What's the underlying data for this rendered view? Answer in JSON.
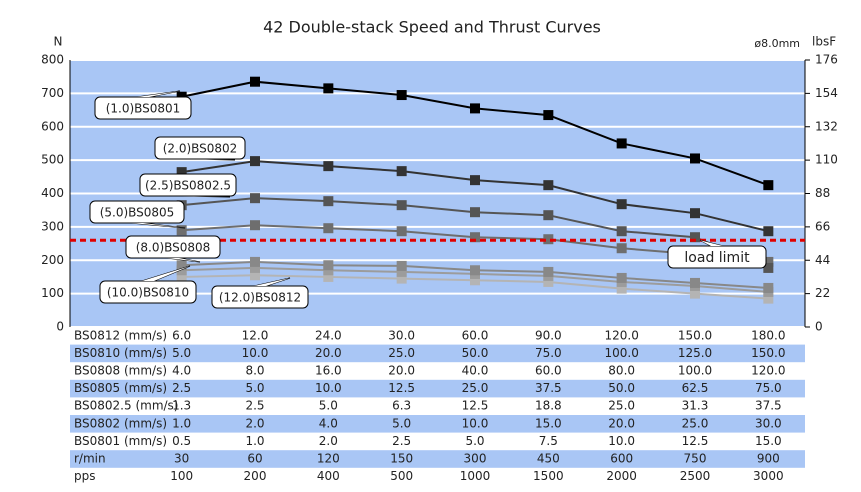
{
  "chart_data": {
    "type": "line",
    "title": "42 Double-stack Speed and Thrust Curves",
    "y_label": "N",
    "y2_label": "lbsF",
    "note": "ø8.0mm",
    "ylim": [
      0,
      800
    ],
    "yticks": [
      0,
      100,
      200,
      300,
      400,
      500,
      600,
      700,
      800
    ],
    "y2lim": [
      0,
      176
    ],
    "y2ticks": [
      0,
      22,
      44,
      66,
      88,
      110,
      132,
      154,
      176
    ],
    "grid": true,
    "background": "#a9c6f5",
    "series": [
      {
        "name": "(1.0)BS0801",
        "color": "#000000",
        "values": [
          690,
          735,
          715,
          695,
          655,
          635,
          550,
          505,
          425
        ]
      },
      {
        "name": "(2.0)BS0802",
        "color": "#333333",
        "values": [
          464,
          497,
          482,
          467,
          440,
          425,
          368,
          341,
          287
        ]
      },
      {
        "name": "(2.5)BS0802.5",
        "color": "#555555",
        "values": [
          365,
          386,
          377,
          365,
          344,
          335,
          287,
          269,
          177
        ]
      },
      {
        "name": "(5.0)BS0805",
        "color": "#6e6e6e",
        "values": [
          290,
          305,
          296,
          287,
          269,
          263,
          236,
          218,
          195
        ]
      },
      {
        "name": "(8.0)BS0808",
        "color": "#888888",
        "values": [
          185,
          195,
          185,
          183,
          170,
          165,
          147,
          132,
          117
        ]
      },
      {
        "name": "(10.0)BS0810",
        "color": "#9c9c9c",
        "values": [
          170,
          177,
          170,
          165,
          159,
          153,
          135,
          123,
          105
        ]
      },
      {
        "name": "(12.0)BS0812",
        "color": "#b4b4b4",
        "values": [
          150,
          155,
          150,
          145,
          140,
          135,
          115,
          100,
          85
        ]
      }
    ],
    "load_limit": {
      "value": 260,
      "label": "load limit",
      "color": "#e00000"
    }
  },
  "table": {
    "rows": [
      [
        "BS0812 (mm/s)",
        "6.0",
        "12.0",
        "24.0",
        "30.0",
        "60.0",
        "90.0",
        "120.0",
        "150.0",
        "180.0"
      ],
      [
        "BS0810 (mm/s)",
        "5.0",
        "10.0",
        "20.0",
        "25.0",
        "50.0",
        "75.0",
        "100.0",
        "125.0",
        "150.0"
      ],
      [
        "BS0808 (mm/s)",
        "4.0",
        "8.0",
        "16.0",
        "20.0",
        "40.0",
        "60.0",
        "80.0",
        "100.0",
        "120.0"
      ],
      [
        "BS0805 (mm/s)",
        "2.5",
        "5.0",
        "10.0",
        "12.5",
        "25.0",
        "37.5",
        "50.0",
        "62.5",
        "75.0"
      ],
      [
        "BS0802.5 (mm/s)",
        "1.3",
        "2.5",
        "5.0",
        "6.3",
        "12.5",
        "18.8",
        "25.0",
        "31.3",
        "37.5"
      ],
      [
        "BS0802 (mm/s)",
        "1.0",
        "2.0",
        "4.0",
        "5.0",
        "10.0",
        "15.0",
        "20.0",
        "25.0",
        "30.0"
      ],
      [
        "BS0801 (mm/s)",
        "0.5",
        "1.0",
        "2.0",
        "2.5",
        "5.0",
        "7.5",
        "10.0",
        "12.5",
        "15.0"
      ],
      [
        "r/min",
        "30",
        "60",
        "120",
        "150",
        "300",
        "450",
        "600",
        "750",
        "900"
      ],
      [
        "pps",
        "100",
        "200",
        "400",
        "500",
        "1000",
        "1500",
        "2000",
        "2500",
        "3000"
      ]
    ]
  }
}
